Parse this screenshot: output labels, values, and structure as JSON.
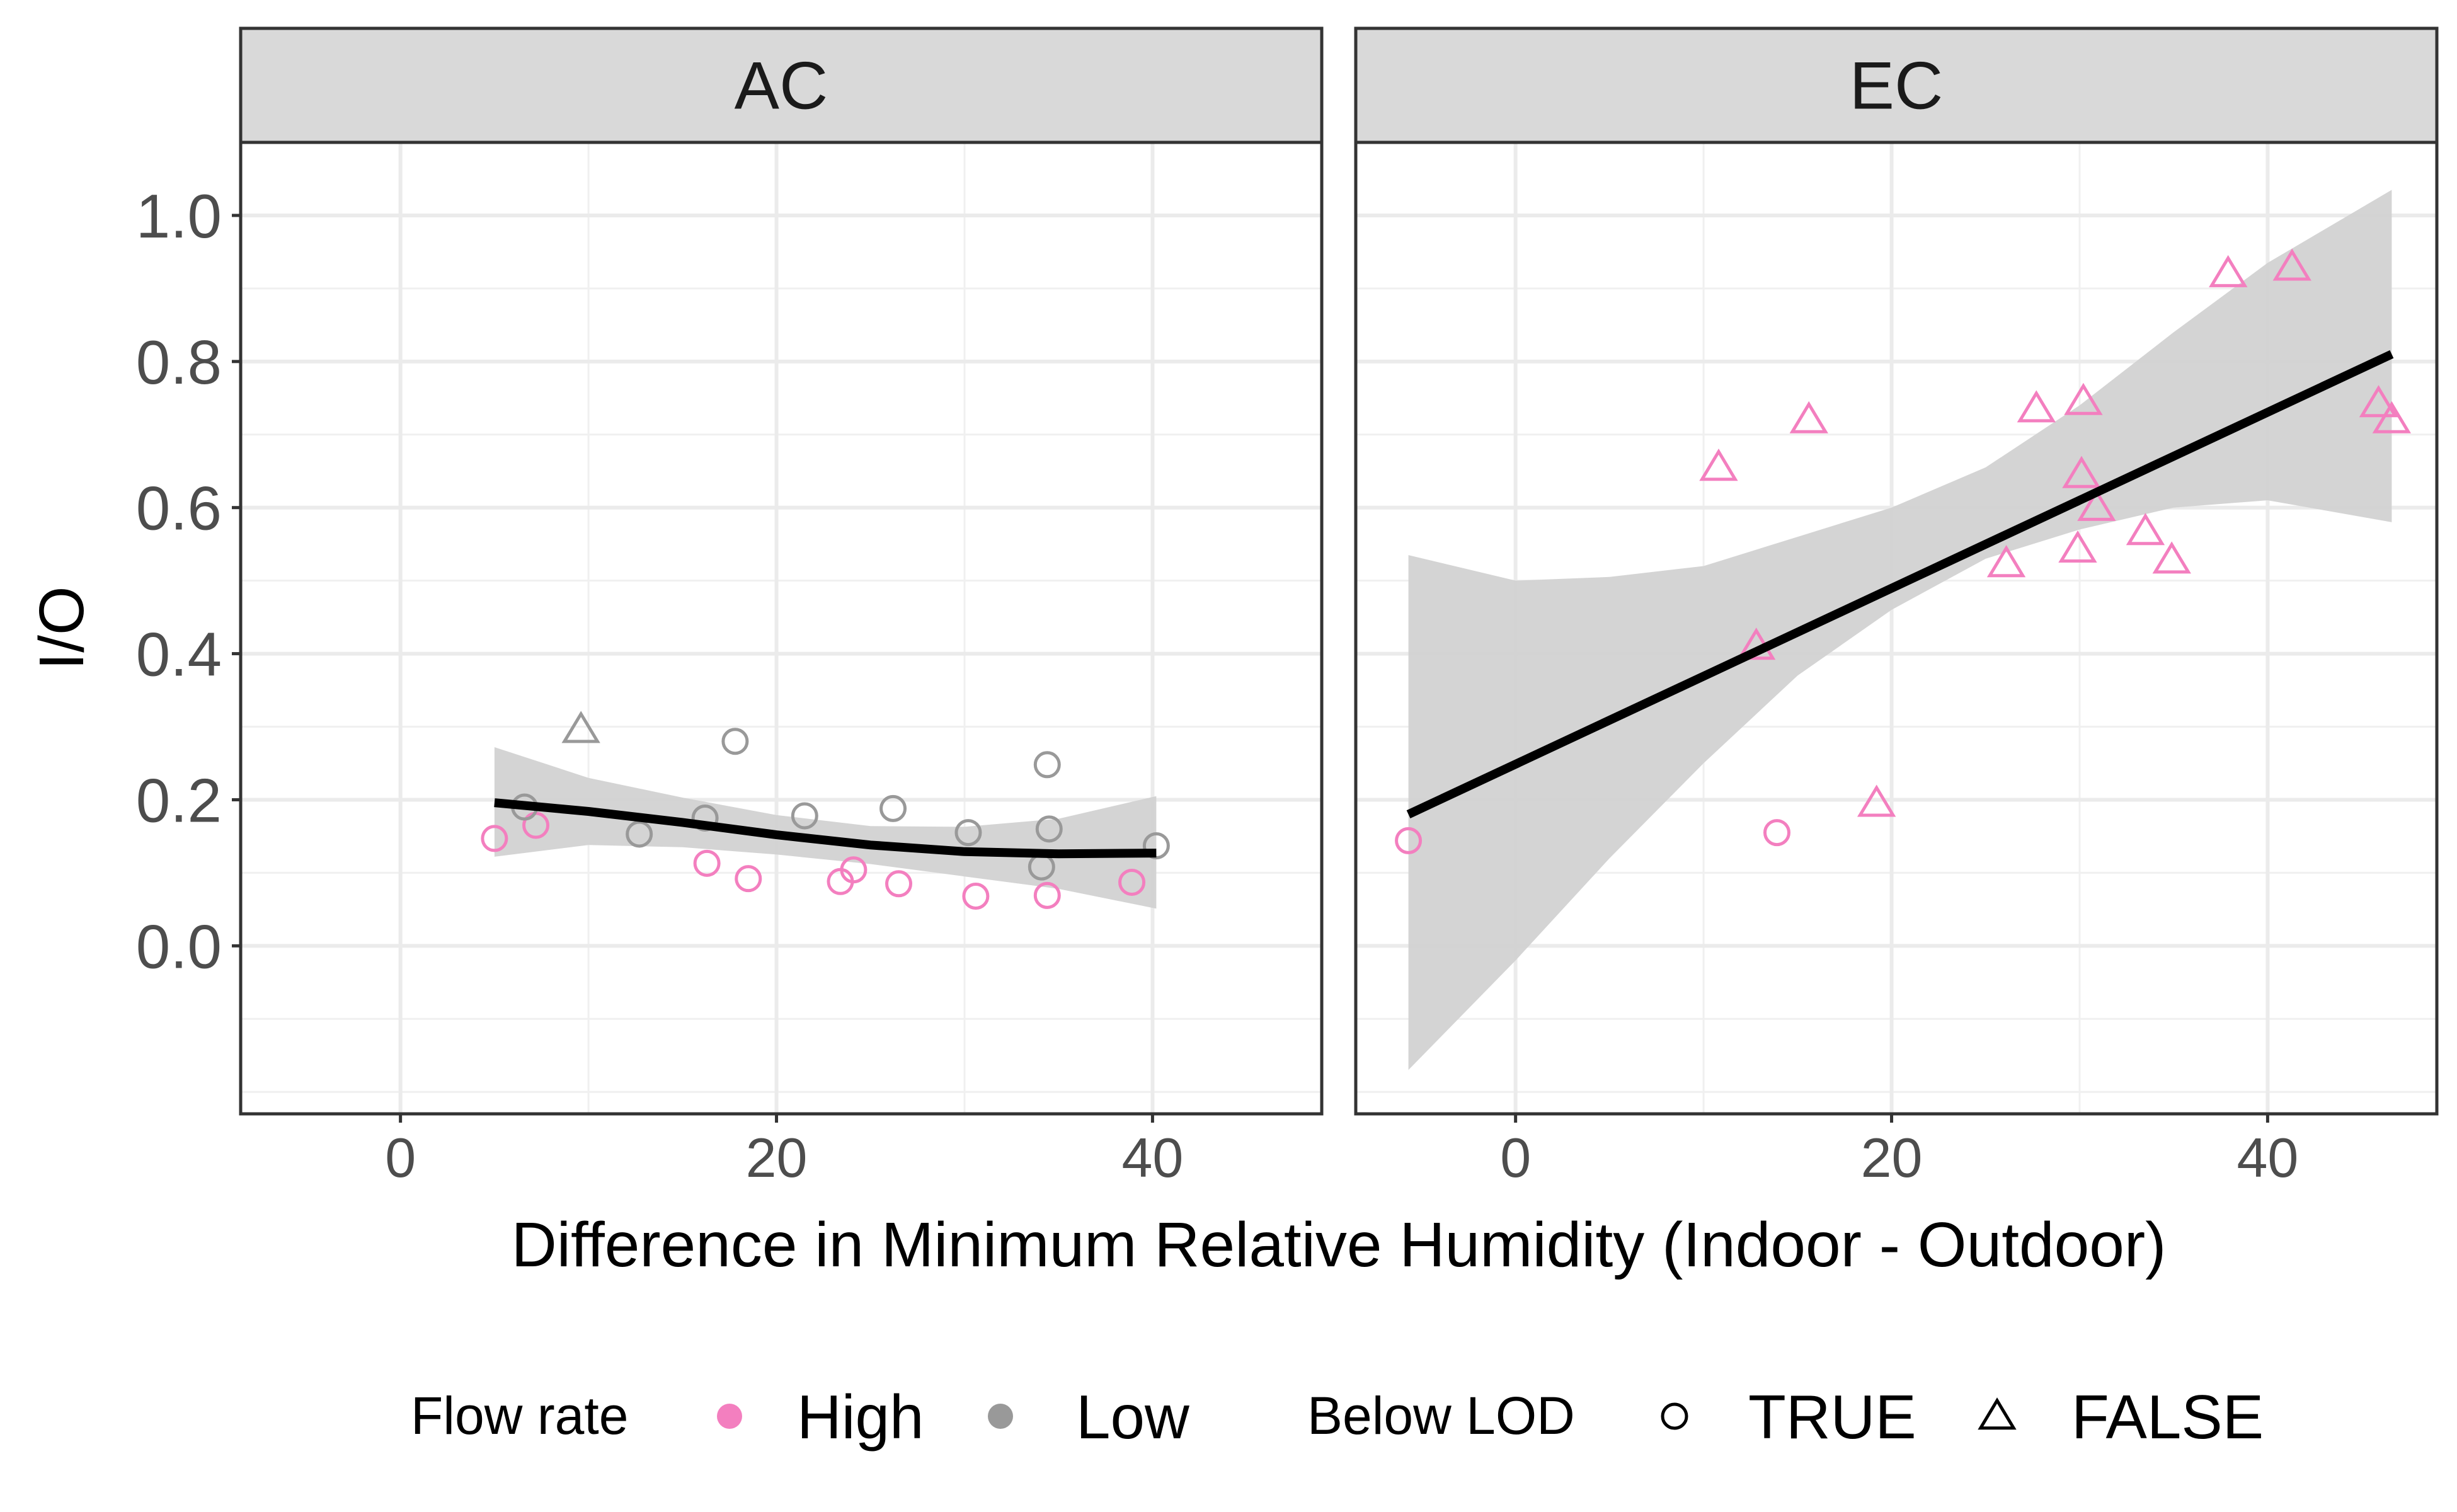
{
  "chart_data": {
    "type": "scatter",
    "xlabel": "Difference in Minimum Relative Humidity (Indoor - Outdoor)",
    "ylabel": "I/O",
    "xlim": [
      -8.5,
      49
    ],
    "ylim": [
      -0.23,
      1.1
    ],
    "x_ticks": [
      "0",
      "20",
      "40"
    ],
    "y_ticks": [
      "0.0",
      "0.2",
      "0.4",
      "0.6",
      "0.8",
      "1.0"
    ],
    "grid": true,
    "colors": {
      "High": "#f37fbf",
      "Low": "#999999",
      "fit": "#000000",
      "band": "#d2d2d2"
    },
    "legend": {
      "position": "bottom",
      "flow_title": "Flow rate",
      "flow_items": [
        {
          "label": "High",
          "color": "#f37fbf"
        },
        {
          "label": "Low",
          "color": "#999999"
        }
      ],
      "lod_title": "Below LOD",
      "lod_items": [
        {
          "label": "TRUE",
          "shape": "circle"
        },
        {
          "label": "FALSE",
          "shape": "triangle"
        }
      ]
    },
    "panels": [
      {
        "label": "AC",
        "points": [
          {
            "x": 5,
            "y": 0.147,
            "flow": "High",
            "lod": true
          },
          {
            "x": 7.2,
            "y": 0.165,
            "flow": "High",
            "lod": true
          },
          {
            "x": 6.6,
            "y": 0.19,
            "flow": "Low",
            "lod": true
          },
          {
            "x": 9.6,
            "y": 0.296,
            "flow": "Low",
            "lod": false
          },
          {
            "x": 12.7,
            "y": 0.153,
            "flow": "Low",
            "lod": true
          },
          {
            "x": 16.2,
            "y": 0.175,
            "flow": "Low",
            "lod": true
          },
          {
            "x": 16.3,
            "y": 0.113,
            "flow": "High",
            "lod": true
          },
          {
            "x": 17.8,
            "y": 0.28,
            "flow": "Low",
            "lod": true
          },
          {
            "x": 18.5,
            "y": 0.092,
            "flow": "High",
            "lod": true
          },
          {
            "x": 21.5,
            "y": 0.178,
            "flow": "Low",
            "lod": true
          },
          {
            "x": 23.4,
            "y": 0.088,
            "flow": "High",
            "lod": true
          },
          {
            "x": 24.1,
            "y": 0.104,
            "flow": "High",
            "lod": true
          },
          {
            "x": 26.2,
            "y": 0.188,
            "flow": "Low",
            "lod": true
          },
          {
            "x": 26.5,
            "y": 0.085,
            "flow": "High",
            "lod": true
          },
          {
            "x": 30.2,
            "y": 0.155,
            "flow": "Low",
            "lod": true
          },
          {
            "x": 30.6,
            "y": 0.068,
            "flow": "High",
            "lod": true
          },
          {
            "x": 34.1,
            "y": 0.108,
            "flow": "Low",
            "lod": true
          },
          {
            "x": 34.4,
            "y": 0.248,
            "flow": "Low",
            "lod": true
          },
          {
            "x": 34.5,
            "y": 0.16,
            "flow": "Low",
            "lod": true
          },
          {
            "x": 34.4,
            "y": 0.069,
            "flow": "High",
            "lod": true
          },
          {
            "x": 38.9,
            "y": 0.087,
            "flow": "High",
            "lod": true
          },
          {
            "x": 40.2,
            "y": 0.137,
            "flow": "Low",
            "lod": true
          }
        ],
        "fit": {
          "x": [
            5,
            10,
            15,
            20,
            25,
            30,
            35,
            40.2
          ],
          "y": [
            0.196,
            0.184,
            0.169,
            0.152,
            0.138,
            0.129,
            0.126,
            0.127
          ]
        },
        "band": {
          "x": [
            5,
            10,
            15,
            20,
            25,
            30,
            35,
            40.2
          ],
          "lower": [
            0.122,
            0.138,
            0.135,
            0.125,
            0.112,
            0.095,
            0.078,
            0.051
          ],
          "upper": [
            0.272,
            0.23,
            0.203,
            0.179,
            0.164,
            0.163,
            0.174,
            0.205
          ]
        }
      },
      {
        "label": "EC",
        "points": [
          {
            "x": -5.7,
            "y": 0.144,
            "flow": "High",
            "lod": true
          },
          {
            "x": 10.8,
            "y": 0.655,
            "flow": "High",
            "lod": false
          },
          {
            "x": 12.8,
            "y": 0.41,
            "flow": "High",
            "lod": false
          },
          {
            "x": 13.9,
            "y": 0.155,
            "flow": "High",
            "lod": true
          },
          {
            "x": 15.6,
            "y": 0.72,
            "flow": "High",
            "lod": false
          },
          {
            "x": 19.2,
            "y": 0.195,
            "flow": "High",
            "lod": false
          },
          {
            "x": 26.1,
            "y": 0.523,
            "flow": "High",
            "lod": false
          },
          {
            "x": 27.7,
            "y": 0.735,
            "flow": "High",
            "lod": false
          },
          {
            "x": 29.9,
            "y": 0.543,
            "flow": "High",
            "lod": false
          },
          {
            "x": 30.1,
            "y": 0.645,
            "flow": "High",
            "lod": false
          },
          {
            "x": 30.2,
            "y": 0.745,
            "flow": "High",
            "lod": false
          },
          {
            "x": 30.9,
            "y": 0.6,
            "flow": "High",
            "lod": false
          },
          {
            "x": 33.5,
            "y": 0.567,
            "flow": "High",
            "lod": false
          },
          {
            "x": 34.9,
            "y": 0.528,
            "flow": "High",
            "lod": false
          },
          {
            "x": 37.9,
            "y": 0.92,
            "flow": "High",
            "lod": false
          },
          {
            "x": 41.3,
            "y": 0.929,
            "flow": "High",
            "lod": false
          },
          {
            "x": 45.9,
            "y": 0.742,
            "flow": "High",
            "lod": false
          },
          {
            "x": 46.6,
            "y": 0.72,
            "flow": "High",
            "lod": false
          }
        ],
        "fit": {
          "x": [
            -5.7,
            46.6
          ],
          "y": [
            0.18,
            0.81
          ]
        },
        "band": {
          "x": [
            -5.7,
            0,
            5,
            10,
            15,
            20,
            25,
            30,
            35,
            40,
            46.6
          ],
          "lower": [
            -0.17,
            -0.02,
            0.12,
            0.25,
            0.37,
            0.46,
            0.53,
            0.57,
            0.6,
            0.61,
            0.58
          ],
          "upper": [
            0.535,
            0.5,
            0.505,
            0.52,
            0.56,
            0.6,
            0.655,
            0.74,
            0.84,
            0.935,
            1.035
          ]
        }
      }
    ]
  }
}
